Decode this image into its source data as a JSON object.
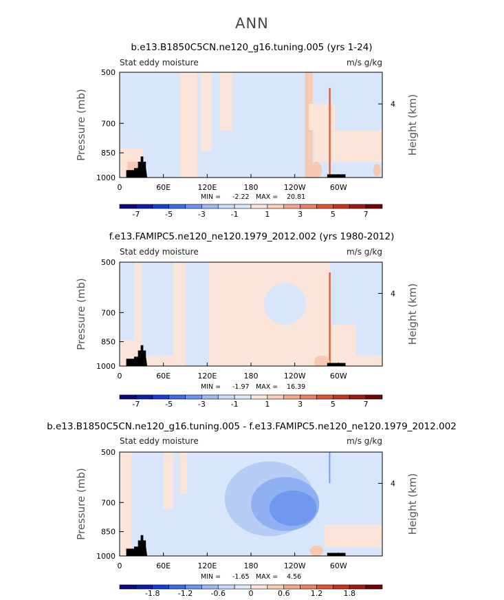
{
  "main_title": "ANN",
  "chart_data": [
    {
      "type": "heatmap",
      "title": "b.e13.B1850C5CN.ne120_g16.tuning.005 (yrs 1-24)",
      "left_label": "Stat eddy moisture",
      "right_label": "m/s g/kg",
      "ylabel": "Pressure (mb)",
      "ylabel_right": "Height (km)",
      "yticks": [
        "500",
        "700",
        "850",
        "1000"
      ],
      "yticks_right": [
        "4"
      ],
      "xticks": [
        "0",
        "60E",
        "120E",
        "180",
        "120W",
        "60W"
      ],
      "stats": {
        "min_label": "MIN =",
        "min": "-2.22",
        "max_label": "MAX =",
        "max": "20.81"
      },
      "colorbar_labels": [
        "-7",
        "-5",
        "-3",
        "-1",
        "1",
        "3",
        "5",
        "7"
      ]
    },
    {
      "type": "heatmap",
      "title": "f.e13.FAMIPC5.ne120_ne120.1979_2012.002 (yrs 1980-2012)",
      "left_label": "Stat eddy moisture",
      "right_label": "m/s g/kg",
      "ylabel": "Pressure (mb)",
      "ylabel_right": "Height (km)",
      "yticks": [
        "500",
        "700",
        "850",
        "1000"
      ],
      "yticks_right": [
        "4"
      ],
      "xticks": [
        "0",
        "60E",
        "120E",
        "180",
        "120W",
        "60W"
      ],
      "stats": {
        "min_label": "MIN =",
        "min": "-1.97",
        "max_label": "MAX =",
        "max": "16.39"
      },
      "colorbar_labels": [
        "-7",
        "-5",
        "-3",
        "-1",
        "1",
        "3",
        "5",
        "7"
      ]
    },
    {
      "type": "heatmap",
      "title": "b.e13.B1850C5CN.ne120_g16.tuning.005 - f.e13.FAMIPC5.ne120_ne120.1979_2012.002",
      "left_label": "Stat eddy moisture",
      "right_label": "m/s g/kg",
      "ylabel": "Pressure (mb)",
      "ylabel_right": "Height (km)",
      "yticks": [
        "500",
        "700",
        "850",
        "1000"
      ],
      "yticks_right": [
        "4"
      ],
      "xticks": [
        "0",
        "60E",
        "120E",
        "180",
        "120W",
        "60W"
      ],
      "stats": {
        "min_label": "MIN =",
        "min": "-1.65",
        "max_label": "MAX =",
        "max": "4.56"
      },
      "colorbar_labels": [
        "-1.8",
        "-1.2",
        "-0.6",
        "0",
        "0.6",
        "1.2",
        "1.8"
      ]
    }
  ],
  "colors": {
    "scale": [
      "#0a0a80",
      "#0a1fa8",
      "#1840d0",
      "#3b6ce8",
      "#6a94f0",
      "#9dbaf4",
      "#c8daf8",
      "#dce9fb",
      "#fbe4d8",
      "#f9cdb6",
      "#f4a88a",
      "#ee8060",
      "#e05530",
      "#c8341a",
      "#a01a0d",
      "#6e0606"
    ],
    "terrain": "#000000",
    "plot_bg": "#d7e6fa",
    "warm_light": "#fbe4d8",
    "warm_mid": "#f7c9b2",
    "warm_strong": "#e0552f",
    "cool_mid": "#b7cdf5",
    "cool_strong": "#8fb0f2",
    "cool_deep": "#6f98ee"
  }
}
